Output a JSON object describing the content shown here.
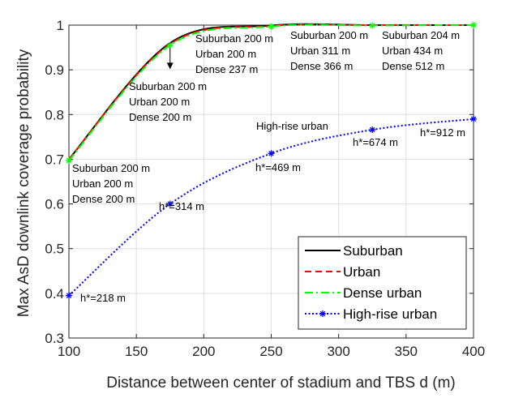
{
  "chart_data": {
    "type": "line",
    "xlabel": "Distance between center of stadium and TBS d (m)",
    "ylabel": "Max AsD downlink coverage probability",
    "xlim": [
      100,
      400
    ],
    "ylim": [
      0.3,
      1.0
    ],
    "xticks": [
      100,
      150,
      200,
      250,
      300,
      350,
      400
    ],
    "yticks": [
      0.3,
      0.4,
      0.5,
      0.6,
      0.7,
      0.8,
      0.9,
      1.0
    ],
    "grid": true,
    "legend_position": "bottom-right",
    "x": [
      100,
      175,
      250,
      325,
      400
    ],
    "series": [
      {
        "name": "Suburban",
        "color": "#000000",
        "style": "solid",
        "marker": "none",
        "values": [
          0.7,
          0.96,
          0.999,
          1.0,
          1.0
        ]
      },
      {
        "name": "Urban",
        "color": "#ff0000",
        "style": "dashed",
        "marker": "none",
        "values": [
          0.7,
          0.958,
          0.998,
          1.0,
          1.0
        ]
      },
      {
        "name": "Dense urban",
        "color": "#00ff00",
        "style": "dashdot",
        "marker": "asterisk",
        "values": [
          0.697,
          0.955,
          0.997,
          0.999,
          1.0
        ]
      },
      {
        "name": "High-rise urban",
        "color": "#0000ff",
        "style": "dotted",
        "marker": "asterisk",
        "values": [
          0.395,
          0.6,
          0.713,
          0.766,
          0.79
        ]
      }
    ],
    "annotations": [
      {
        "id": "a100",
        "x": 100,
        "y": 0.697,
        "lines": [
          "Suburban 200 m",
          "Urban 200 m",
          "Dense 200 m"
        ]
      },
      {
        "id": "a175",
        "x": 175,
        "y": 0.955,
        "lines": [
          "Suburban 200 m",
          "Urban 200 m",
          "Dense 200 m"
        ]
      },
      {
        "id": "a200",
        "x": 175,
        "y": 0.955,
        "lines": [
          "Suburban 200 m",
          "Urban 200 m",
          "Dense 237 m"
        ]
      },
      {
        "id": "a250",
        "x": 250,
        "y": 0.997,
        "lines": [
          "Suburban 200 m",
          "Urban 311 m",
          "Dense 366 m"
        ]
      },
      {
        "id": "a325",
        "x": 325,
        "y": 0.999,
        "lines": [
          "Suburban 204 m",
          "Urban 434 m",
          "Dense 512 m"
        ]
      },
      {
        "id": "hr",
        "x": 250,
        "y": 0.713,
        "lines": [
          "High-rise urban"
        ]
      },
      {
        "id": "h100",
        "x": 100,
        "y": 0.395,
        "lines": [
          "h*=218 m"
        ]
      },
      {
        "id": "h175",
        "x": 175,
        "y": 0.6,
        "lines": [
          "h*=314 m"
        ]
      },
      {
        "id": "h250",
        "x": 250,
        "y": 0.713,
        "lines": [
          "h*=469 m"
        ]
      },
      {
        "id": "h325",
        "x": 325,
        "y": 0.766,
        "lines": [
          "h*=674 m"
        ]
      },
      {
        "id": "h400",
        "x": 400,
        "y": 0.79,
        "lines": [
          "h*=912 m"
        ]
      }
    ]
  }
}
